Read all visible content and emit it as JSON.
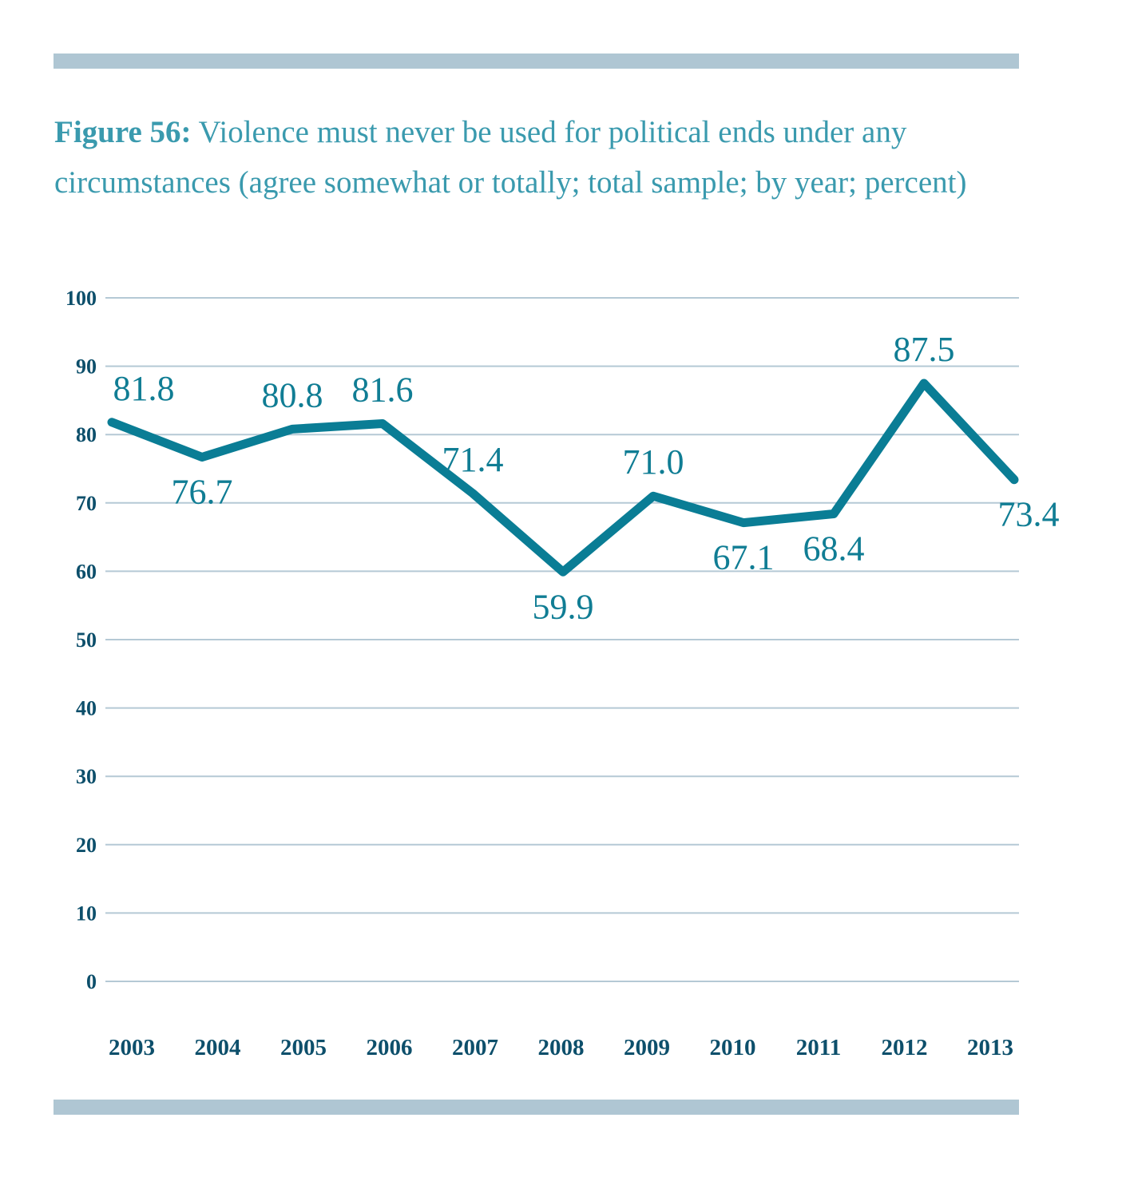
{
  "title": {
    "prefix": "Figure 56:",
    "text": " Violence must never be used for political ends under any circumstances (agree somewhat or totally; total sample; by year; percent)"
  },
  "colors": {
    "line": "#0a7d95",
    "label": "#107d94",
    "axis_text": "#0d4f6b",
    "title": "#3a9aae",
    "band": "#afc6d3",
    "grid": "#b5c9d5"
  },
  "chart_data": {
    "type": "line",
    "title": "Figure 56: Violence must never be used for political ends under any circumstances (agree somewhat or totally; total sample; by year; percent)",
    "xlabel": "",
    "ylabel": "",
    "categories": [
      "2003",
      "2004",
      "2005",
      "2006",
      "2007",
      "2008",
      "2009",
      "2010",
      "2011",
      "2012",
      "2013"
    ],
    "series": [
      {
        "name": "Agree somewhat or totally",
        "values": [
          81.8,
          76.7,
          80.8,
          81.6,
          71.4,
          59.9,
          71.0,
          67.1,
          68.4,
          87.5,
          73.4
        ]
      }
    ],
    "data_labels": [
      "81.8",
      "76.7",
      "80.8",
      "81.6",
      "71.4",
      "59.9",
      "71.0",
      "67.1",
      "68.4",
      "87.5",
      "73.4"
    ],
    "label_positions": [
      "above",
      "below",
      "above",
      "above",
      "above",
      "below",
      "above",
      "below",
      "below",
      "above",
      "below"
    ],
    "ylim": [
      0,
      100
    ],
    "yticks": [
      0,
      10,
      20,
      30,
      40,
      50,
      60,
      70,
      80,
      90,
      100
    ],
    "grid": true,
    "legend": "none"
  }
}
